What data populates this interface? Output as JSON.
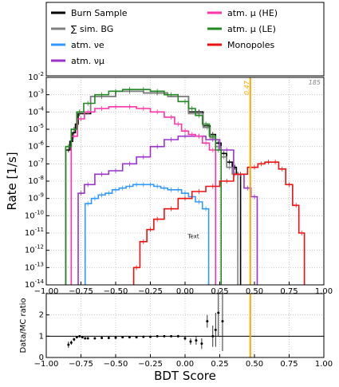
{
  "chart_data": [
    {
      "type": "line",
      "ylabel": "Rate [1/s]",
      "xlim": [
        -1.0,
        1.0
      ],
      "ylim_exp": [
        -14,
        -2
      ],
      "log_y": true,
      "grid": true,
      "legend_placement": "above",
      "x_ticks": [
        "−1.00",
        "−0.75",
        "−0.50",
        "−0.25",
        "0.00",
        "0.25",
        "0.50",
        "0.75",
        "1.00"
      ],
      "x_tick_values": [
        -1.0,
        -0.75,
        -0.5,
        -0.25,
        0.0,
        0.25,
        0.5,
        0.75,
        1.0
      ],
      "y_ticks": [
        "10-2",
        "10-3",
        "10-4",
        "10-5",
        "10-6",
        "10-7",
        "10-8",
        "10-9",
        "10-10",
        "10-11",
        "10-12",
        "10-13",
        "10-14"
      ],
      "y_tick_exps": [
        -2,
        -3,
        -4,
        -5,
        -6,
        -7,
        -8,
        -9,
        -10,
        -11,
        -12,
        -13,
        -14
      ],
      "annotations": {
        "cut_label": "0.47",
        "cut_value": 0.47,
        "cut_color": "#ffa500",
        "corner_label": "185",
        "text_label": "Text",
        "text_x": 0.02,
        "text_exp": -11.3
      },
      "series": [
        {
          "name": "Burn Sample",
          "color": "#000000",
          "x": [
            -0.84,
            -0.82,
            -0.8,
            -0.78,
            -0.76,
            -0.6,
            -0.4,
            -0.2,
            -0.05,
            0.1,
            0.16,
            0.2,
            0.24,
            0.28,
            0.32,
            0.36,
            0.38
          ],
          "log_y": [
            -6.2,
            -5.7,
            -5.2,
            -4.7,
            -4.1,
            -3.1,
            -2.8,
            -2.9,
            -3.1,
            -4.0,
            -4.8,
            -5.3,
            -5.8,
            -6.4,
            -6.9,
            -7.2,
            -7.6
          ]
        },
        {
          "name": "∑ sim. BG",
          "color": "#808080",
          "x": [
            -0.84,
            -0.8,
            -0.76,
            -0.6,
            -0.4,
            -0.2,
            -0.05,
            0.1,
            0.16,
            0.2,
            0.24,
            0.28,
            0.32,
            0.36
          ],
          "log_y": [
            -6.0,
            -5.0,
            -4.0,
            -3.1,
            -2.8,
            -2.9,
            -3.1,
            -4.1,
            -4.9,
            -5.5,
            -6.0,
            -6.6,
            -7.2,
            -7.6
          ]
        },
        {
          "name": "atm. νe",
          "color": "#3399ff",
          "x": [
            -0.7,
            -0.65,
            -0.6,
            -0.55,
            -0.5,
            -0.45,
            -0.4,
            -0.35,
            -0.3,
            -0.25,
            -0.2,
            -0.15,
            -0.1,
            -0.05,
            0.0,
            0.05,
            0.1,
            0.15
          ],
          "log_y": [
            -9.3,
            -9.0,
            -8.8,
            -8.7,
            -8.5,
            -8.4,
            -8.3,
            -8.2,
            -8.2,
            -8.2,
            -8.3,
            -8.4,
            -8.5,
            -8.5,
            -8.7,
            -8.9,
            -9.2,
            -9.6
          ]
        },
        {
          "name": "atm. νμ",
          "color": "#9933cc",
          "x": [
            -0.75,
            -0.7,
            -0.6,
            -0.5,
            -0.4,
            -0.3,
            -0.2,
            -0.1,
            0.0,
            0.1,
            0.2,
            0.3,
            0.4,
            0.45,
            0.5
          ],
          "log_y": [
            -8.7,
            -8.2,
            -7.6,
            -7.4,
            -7.0,
            -6.6,
            -6.0,
            -5.6,
            -5.4,
            -5.4,
            -5.6,
            -6.2,
            -7.6,
            -8.4,
            -8.9
          ]
        },
        {
          "name": "atm. μ (HE)",
          "color": "#ff33aa",
          "x": [
            -0.8,
            -0.75,
            -0.7,
            -0.6,
            -0.5,
            -0.4,
            -0.3,
            -0.2,
            -0.1,
            -0.05,
            0.0,
            0.05,
            0.1,
            0.15,
            0.2
          ],
          "log_y": [
            -5.4,
            -4.4,
            -4.0,
            -3.8,
            -3.7,
            -3.7,
            -3.8,
            -4.0,
            -4.3,
            -4.7,
            -5.1,
            -5.3,
            -5.4,
            -5.8,
            -6.2
          ]
        },
        {
          "name": "atm. μ (LE)",
          "color": "#228822",
          "x": [
            -0.84,
            -0.8,
            -0.76,
            -0.7,
            -0.6,
            -0.5,
            -0.4,
            -0.3,
            -0.2,
            -0.1,
            0.0,
            0.05,
            0.1,
            0.15,
            0.2,
            0.24
          ],
          "log_y": [
            -6.0,
            -5.0,
            -4.0,
            -3.5,
            -3.0,
            -2.8,
            -2.7,
            -2.7,
            -2.8,
            -3.0,
            -3.4,
            -3.8,
            -4.2,
            -4.7,
            -5.4,
            -6.2
          ]
        },
        {
          "name": "Monopoles",
          "color": "#ee1111",
          "x": [
            -0.35,
            -0.3,
            -0.25,
            -0.2,
            -0.1,
            0.0,
            0.1,
            0.2,
            0.3,
            0.4,
            0.5,
            0.55,
            0.6,
            0.65,
            0.7,
            0.75,
            0.8,
            0.84
          ],
          "log_y": [
            -13.0,
            -11.5,
            -10.8,
            -10.2,
            -9.6,
            -9.0,
            -8.6,
            -8.3,
            -8.0,
            -7.6,
            -7.2,
            -7.0,
            -6.9,
            -6.9,
            -7.3,
            -8.2,
            -9.4,
            -11.0
          ]
        }
      ]
    },
    {
      "type": "scatter",
      "xlabel": "BDT Score",
      "ylabel": "Data/MC ratio",
      "xlim": [
        -1.0,
        1.0
      ],
      "ylim": [
        0.0,
        3.0
      ],
      "x_ticks": [
        "−1.00",
        "−0.75",
        "−0.50",
        "−0.25",
        "0.00",
        "0.25",
        "0.50",
        "0.75",
        "1.00"
      ],
      "x_tick_values": [
        -1.0,
        -0.75,
        -0.5,
        -0.25,
        0.0,
        0.25,
        0.5,
        0.75,
        1.0
      ],
      "y_ticks": [
        "0",
        "1",
        "2"
      ],
      "y_tick_values": [
        0,
        1,
        2
      ],
      "reference_line": 1.0,
      "cut_value": 0.47,
      "cut_color": "#ffa500",
      "points": {
        "x": [
          -0.84,
          -0.82,
          -0.8,
          -0.78,
          -0.76,
          -0.74,
          -0.72,
          -0.7,
          -0.65,
          -0.6,
          -0.55,
          -0.5,
          -0.45,
          -0.4,
          -0.35,
          -0.3,
          -0.25,
          -0.2,
          -0.15,
          -0.1,
          -0.05,
          0.0,
          0.04,
          0.08,
          0.12,
          0.16,
          0.2,
          0.22,
          0.24,
          0.27
        ],
        "y": [
          0.6,
          0.7,
          0.85,
          0.95,
          1.0,
          0.95,
          0.9,
          0.9,
          0.9,
          0.92,
          0.92,
          0.93,
          0.95,
          0.95,
          0.95,
          0.97,
          0.97,
          1.0,
          1.0,
          1.0,
          1.0,
          0.9,
          0.75,
          0.8,
          0.65,
          1.7,
          1.0,
          1.3,
          2.1,
          1.7
        ],
        "err": [
          0.15,
          0.1,
          0.08,
          0.05,
          0.05,
          0.04,
          0.03,
          0.03,
          0.03,
          0.03,
          0.03,
          0.03,
          0.03,
          0.03,
          0.03,
          0.03,
          0.03,
          0.04,
          0.04,
          0.05,
          0.06,
          0.1,
          0.15,
          0.2,
          0.25,
          0.3,
          0.5,
          0.8,
          1.1,
          1.4
        ]
      }
    }
  ]
}
